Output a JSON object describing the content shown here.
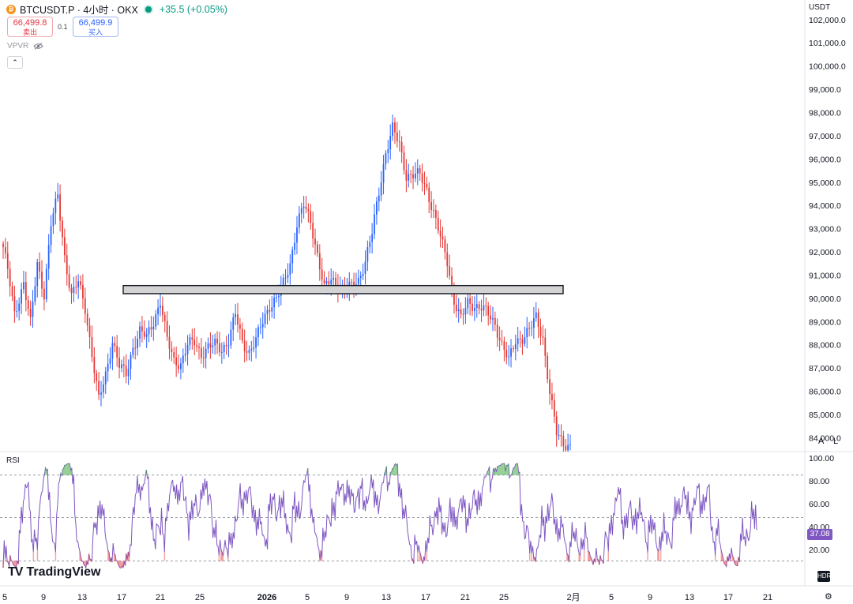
{
  "header": {
    "symbol": "BTCUSDT.P · 4小时 · OKX",
    "change": "+35.5 (+0.05%)",
    "coin_icon": "bitcoin-icon"
  },
  "trade": {
    "sell_price": "66,499.8",
    "sell_label": "卖出",
    "spread": "0.1",
    "buy_price": "66,499.9",
    "buy_label": "买入"
  },
  "indicators": {
    "vpvr_label": "VPVR",
    "rsi_label": "RSI",
    "rsi_value": "37.08"
  },
  "axis": {
    "currency": "USDT",
    "auto_label": "A",
    "log_label": "L"
  },
  "watermark": "TradingView",
  "colors": {
    "up": "#2962ff",
    "down": "#e53935",
    "rsi_line": "#7e57c2",
    "zone_fill": "#d3d3d3"
  },
  "chart_data": {
    "type": "candlestick",
    "symbol": "BTCUSDT.P",
    "timeframe": "4h",
    "y_range": [
      83400,
      102300
    ],
    "y_ticks": [
      "102,000.0",
      "101,000.0",
      "100,000.0",
      "99,000.0",
      "98,000.0",
      "97,000.0",
      "96,000.0",
      "95,000.0",
      "94,000.0",
      "93,000.0",
      "92,000.0",
      "91,000.0",
      "90,000.0",
      "89,000.0",
      "88,000.0",
      "87,000.0",
      "86,000.0",
      "85,000.0",
      "84,000.0"
    ],
    "x_ticks": [
      "5",
      "9",
      "13",
      "17",
      "21",
      "25",
      "2026",
      "5",
      "9",
      "13",
      "17",
      "21",
      "25",
      "2月",
      "5",
      "9",
      "13",
      "17",
      "21"
    ],
    "resistance_zone": {
      "low": 90200,
      "high": 90550
    },
    "rsi": {
      "y_ticks": [
        "100.00",
        "80.00",
        "60.00",
        "40.00",
        "20.00"
      ],
      "upper_band": 85,
      "middle": 48,
      "lower_band": 10,
      "last": 37.08
    },
    "anchors": [
      [
        0,
        92200
      ],
      [
        2,
        91200
      ],
      [
        5,
        89300
      ],
      [
        9,
        90700
      ],
      [
        12,
        88900
      ],
      [
        15,
        91500
      ],
      [
        18,
        90200
      ],
      [
        21,
        93200
      ],
      [
        24,
        94400
      ],
      [
        27,
        91800
      ],
      [
        30,
        90100
      ],
      [
        33,
        90700
      ],
      [
        36,
        89600
      ],
      [
        39,
        87600
      ],
      [
        42,
        85600
      ],
      [
        45,
        86700
      ],
      [
        48,
        88200
      ],
      [
        51,
        87100
      ],
      [
        54,
        86700
      ],
      [
        57,
        87900
      ],
      [
        60,
        88600
      ],
      [
        63,
        88300
      ],
      [
        66,
        89000
      ],
      [
        69,
        89900
      ],
      [
        72,
        88200
      ],
      [
        75,
        87300
      ],
      [
        78,
        87200
      ],
      [
        81,
        88000
      ],
      [
        84,
        88100
      ],
      [
        87,
        87600
      ],
      [
        90,
        87900
      ],
      [
        93,
        88000
      ],
      [
        96,
        87800
      ],
      [
        99,
        88200
      ],
      [
        102,
        89300
      ],
      [
        105,
        88100
      ],
      [
        108,
        87700
      ],
      [
        111,
        88200
      ],
      [
        114,
        89000
      ],
      [
        117,
        89700
      ],
      [
        120,
        90000
      ],
      [
        123,
        90600
      ],
      [
        126,
        91500
      ],
      [
        129,
        93200
      ],
      [
        132,
        94000
      ],
      [
        135,
        93300
      ],
      [
        138,
        91900
      ],
      [
        141,
        90400
      ],
      [
        144,
        90800
      ],
      [
        147,
        90600
      ],
      [
        150,
        90400
      ],
      [
        153,
        90500
      ],
      [
        156,
        90800
      ],
      [
        159,
        91600
      ],
      [
        162,
        92800
      ],
      [
        165,
        94600
      ],
      [
        168,
        96300
      ],
      [
        171,
        97300
      ],
      [
        174,
        96600
      ],
      [
        177,
        95300
      ],
      [
        180,
        95300
      ],
      [
        183,
        95300
      ],
      [
        186,
        94700
      ],
      [
        189,
        93700
      ],
      [
        192,
        92600
      ],
      [
        195,
        91600
      ],
      [
        198,
        89900
      ],
      [
        201,
        89100
      ],
      [
        204,
        89800
      ],
      [
        207,
        89700
      ],
      [
        210,
        89600
      ],
      [
        213,
        89300
      ],
      [
        216,
        88900
      ],
      [
        219,
        88000
      ],
      [
        222,
        87300
      ],
      [
        225,
        88200
      ],
      [
        228,
        88300
      ],
      [
        231,
        88600
      ],
      [
        234,
        89200
      ],
      [
        237,
        88300
      ],
      [
        240,
        85900
      ],
      [
        243,
        84200
      ],
      [
        246,
        83800
      ],
      [
        249,
        83600
      ]
    ]
  }
}
